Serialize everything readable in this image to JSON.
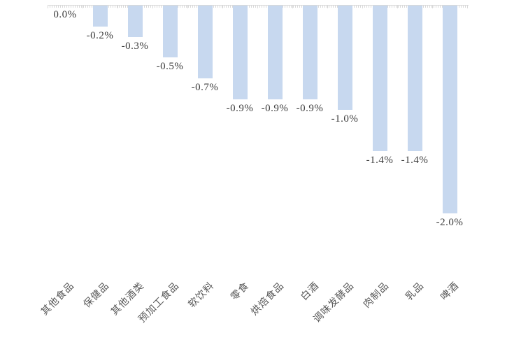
{
  "chart_data": {
    "type": "bar",
    "orientation": "vertical",
    "title": "",
    "xlabel": "",
    "ylabel": "",
    "ylim": [
      -2.0,
      0.0
    ],
    "grid": false,
    "legend": null,
    "value_label_position": "outside-end-below",
    "category_label_rotation_deg": 45,
    "categories": [
      "其他食品",
      "保健品",
      "其他酒类",
      "预加工食品",
      "软饮料",
      "零食",
      "烘焙食品",
      "白酒",
      "调味发酵品",
      "肉制品",
      "乳品",
      "啤酒"
    ],
    "values": [
      0.0,
      -0.2,
      -0.3,
      -0.5,
      -0.7,
      -0.9,
      -0.9,
      -0.9,
      -1.0,
      -1.4,
      -1.4,
      -2.0
    ],
    "value_labels": [
      "0.0%",
      "-0.2%",
      "-0.3%",
      "-0.5%",
      "-0.7%",
      "-0.9%",
      "-0.9%",
      "-0.9%",
      "-1.0%",
      "-1.4%",
      "-1.4%",
      "-2.0%"
    ],
    "colors": {
      "bar_fill": "#c7d8ef",
      "axis_line": "#d9d9d9",
      "value_label_text": "#3d3d3d",
      "category_label_text": "#595959",
      "background": "#ffffff"
    }
  }
}
